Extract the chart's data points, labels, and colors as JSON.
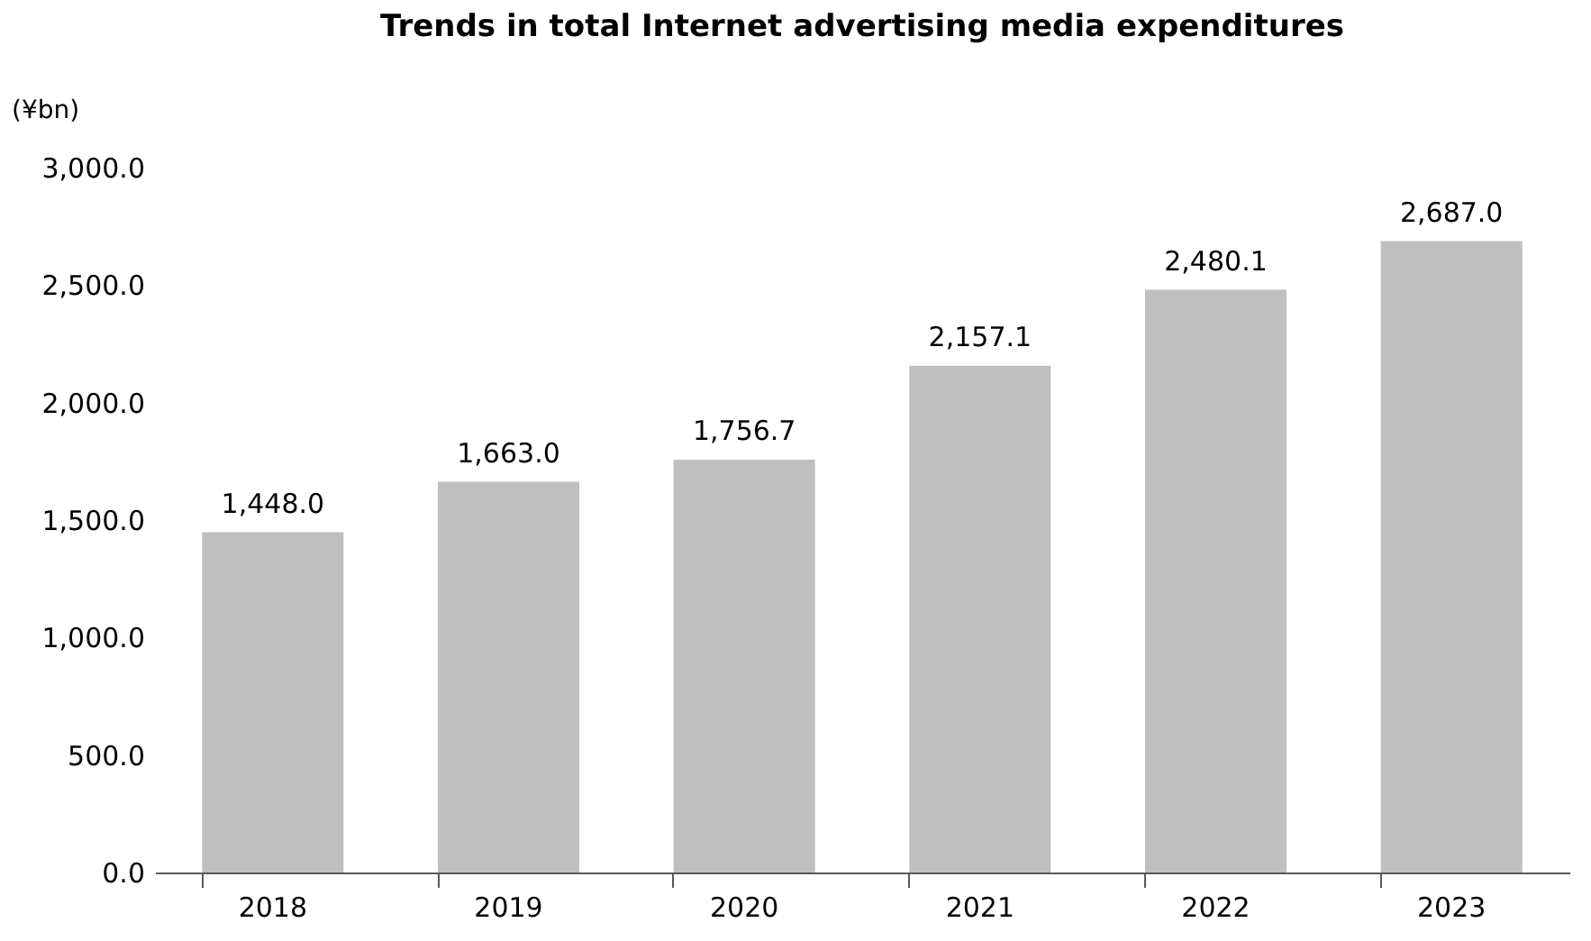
{
  "chart_data": {
    "type": "bar",
    "title": "Trends in total Internet advertising media expenditures",
    "ylabel": "(¥bn)",
    "categories": [
      "2018",
      "2019",
      "2020",
      "2021",
      "2022",
      "2023"
    ],
    "values": [
      1448.0,
      1663.0,
      1756.7,
      2157.1,
      2480.1,
      2687.0
    ],
    "color": "#bfbfbf",
    "value_labels": [
      "1,448.0",
      "1,663.0",
      "1,756.7",
      "2,157.1",
      "2,480.1",
      "2,687.0"
    ],
    "ylim": [
      0,
      3000
    ],
    "yticks": [
      {
        "value": 0,
        "label": "0.0"
      },
      {
        "value": 500,
        "label": "500.0"
      },
      {
        "value": 1000,
        "label": "1,000.0"
      },
      {
        "value": 1500,
        "label": "1,500.0"
      },
      {
        "value": 2000,
        "label": "2,000.0"
      },
      {
        "value": 2500,
        "label": "2,500.0"
      },
      {
        "value": 3000,
        "label": "3,000.0"
      }
    ],
    "grid": false
  }
}
